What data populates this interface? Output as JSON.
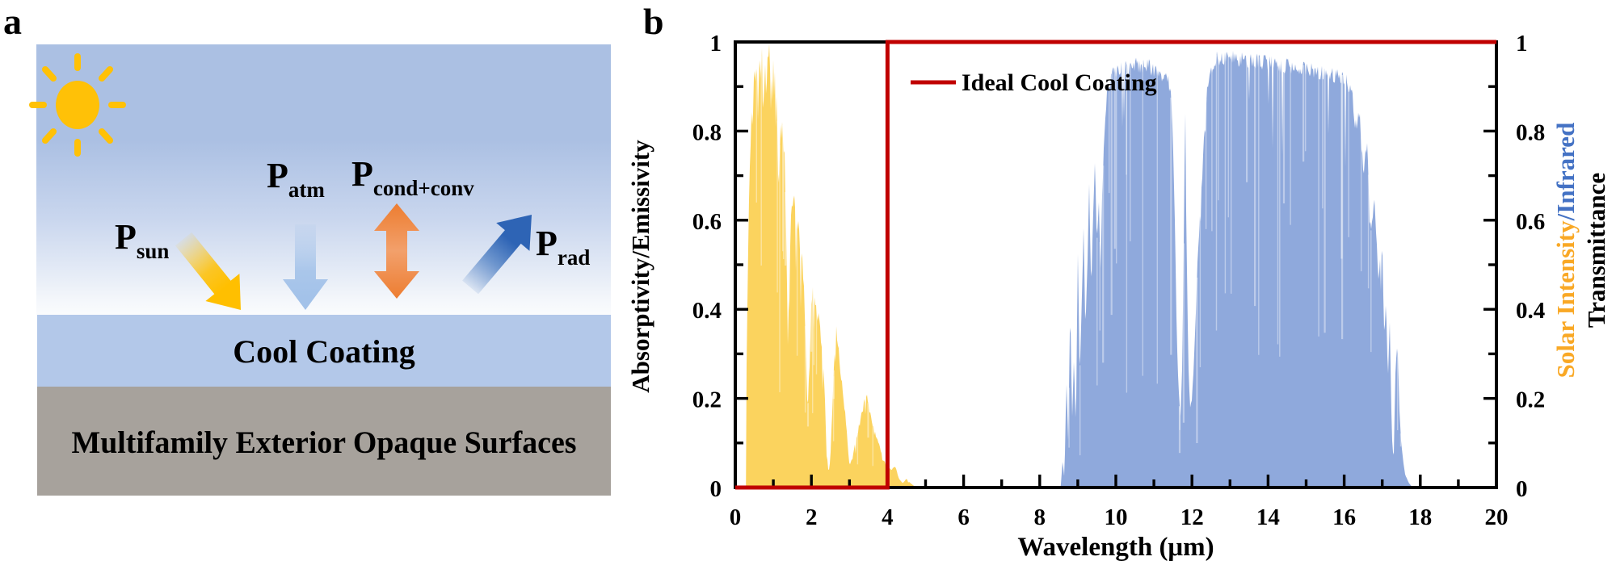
{
  "panel_a": {
    "label": "a",
    "flux_labels": {
      "sun": {
        "main": "P",
        "sub": "sun",
        "color": "#FFBF00"
      },
      "atm": {
        "main": "P",
        "sub": "atm",
        "color": "#5B9BD5"
      },
      "cond_conv": {
        "main": "P",
        "sub": "cond+conv",
        "color": "#ED7D31"
      },
      "rad": {
        "main": "P",
        "sub": "rad",
        "color": "#2E64B5"
      }
    },
    "layers": {
      "coating": {
        "label": "Cool Coating",
        "color": "#B3C8E9"
      },
      "substrate": {
        "label": "Multifamily Exterior Opaque Surfaces",
        "color": "#A7A29C"
      }
    },
    "sky_color": "#ABC0E3",
    "sun_color": "#FFC107"
  },
  "panel_b": {
    "label": "b",
    "left_axis_title": "Absorptivity/Emissivity",
    "right_axis_title": {
      "part1": "Solar Intensity",
      "part2": "/Infrared",
      "part3": "Transmittance",
      "solar_color": "#F9A825",
      "infrared_color": "#4472C4"
    },
    "xlabel": "Wavelength (μm)",
    "legend": {
      "label": "Ideal Cool Coating",
      "color": "#C00000"
    }
  },
  "chart_data": {
    "type": "area",
    "title": "",
    "xlabel": "Wavelength (μm)",
    "ylabel_left": "Absorptivity/Emissivity",
    "ylabel_right": "Solar Intensity/Infrared Transmittance",
    "xlim": [
      0,
      20
    ],
    "ylim": [
      0,
      1
    ],
    "grid": false,
    "legend_position": "top-left-inside",
    "x_major_tick_values": [
      0,
      2,
      4,
      6,
      8,
      10,
      12,
      14,
      16,
      18,
      20
    ],
    "x_tick_labels": [
      "0",
      "2",
      "4",
      "6",
      "8",
      "10",
      "12",
      "14",
      "16",
      "18",
      "20"
    ],
    "x_minor_tick_values": [
      1,
      3,
      5,
      7,
      9,
      11,
      13,
      15,
      17,
      19
    ],
    "y_major_tick_values": [
      0,
      0.2,
      0.4,
      0.6,
      0.8,
      1
    ],
    "y_tick_labels": [
      "0",
      "0.2",
      "0.4",
      "0.6",
      "0.8",
      "1"
    ],
    "y_minor_tick_values": [
      0.1,
      0.3,
      0.5,
      0.7,
      0.9
    ],
    "series": [
      {
        "name": "Ideal Cool Coating",
        "type": "line",
        "color": "#C00000",
        "points": [
          [
            0,
            0
          ],
          [
            4,
            0
          ],
          [
            4,
            1
          ],
          [
            20,
            1
          ]
        ]
      },
      {
        "name": "Solar Intensity",
        "type": "area",
        "color": "#FBD35E",
        "points": [
          [
            0.28,
            0
          ],
          [
            0.3,
            0.32
          ],
          [
            0.33,
            0.5
          ],
          [
            0.36,
            0.65
          ],
          [
            0.4,
            0.8
          ],
          [
            0.45,
            0.88
          ],
          [
            0.5,
            0.93
          ],
          [
            0.55,
            0.95
          ],
          [
            0.6,
            0.96
          ],
          [
            0.65,
            0.96
          ],
          [
            0.7,
            0.98
          ],
          [
            0.72,
            0.9
          ],
          [
            0.76,
            0.95
          ],
          [
            0.8,
            0.93
          ],
          [
            0.85,
            0.96
          ],
          [
            0.9,
            0.99
          ],
          [
            0.93,
            0.86
          ],
          [
            0.96,
            0.91
          ],
          [
            1,
            0.95
          ],
          [
            1.05,
            0.91
          ],
          [
            1.1,
            0.86
          ],
          [
            1.13,
            0.7
          ],
          [
            1.18,
            0.8
          ],
          [
            1.25,
            0.82
          ],
          [
            1.3,
            0.77
          ],
          [
            1.35,
            0.5
          ],
          [
            1.38,
            0.33
          ],
          [
            1.42,
            0.44
          ],
          [
            1.48,
            0.67
          ],
          [
            1.55,
            0.66
          ],
          [
            1.6,
            0.62
          ],
          [
            1.65,
            0.6
          ],
          [
            1.7,
            0.57
          ],
          [
            1.75,
            0.52
          ],
          [
            1.8,
            0.47
          ],
          [
            1.85,
            0.34
          ],
          [
            1.9,
            0.17
          ],
          [
            1.95,
            0.28
          ],
          [
            2,
            0.44
          ],
          [
            2.05,
            0.46
          ],
          [
            2.1,
            0.44
          ],
          [
            2.15,
            0.41
          ],
          [
            2.2,
            0.38
          ],
          [
            2.25,
            0.34
          ],
          [
            2.3,
            0.29
          ],
          [
            2.35,
            0.21
          ],
          [
            2.4,
            0.09
          ],
          [
            2.45,
            0.03
          ],
          [
            2.5,
            0.07
          ],
          [
            2.55,
            0.18
          ],
          [
            2.6,
            0.3
          ],
          [
            2.65,
            0.37
          ],
          [
            2.7,
            0.33
          ],
          [
            2.75,
            0.28
          ],
          [
            2.8,
            0.24
          ],
          [
            2.85,
            0.2
          ],
          [
            2.9,
            0.16
          ],
          [
            2.95,
            0.1
          ],
          [
            3,
            0.05
          ],
          [
            3.1,
            0.08
          ],
          [
            3.2,
            0.12
          ],
          [
            3.3,
            0.16
          ],
          [
            3.4,
            0.2
          ],
          [
            3.45,
            0.22
          ],
          [
            3.5,
            0.19
          ],
          [
            3.6,
            0.15
          ],
          [
            3.7,
            0.12
          ],
          [
            3.8,
            0.09
          ],
          [
            3.9,
            0.06
          ],
          [
            4,
            0.05
          ],
          [
            4.1,
            0.04
          ],
          [
            4.2,
            0.05
          ],
          [
            4.3,
            0.02
          ],
          [
            4.4,
            0.01
          ],
          [
            4.5,
            0.02
          ],
          [
            4.6,
            0.01
          ],
          [
            4.75,
            0
          ]
        ]
      },
      {
        "name": "Infrared Transmittance",
        "type": "area",
        "color": "#8FA9DC",
        "points": [
          [
            8.55,
            0
          ],
          [
            8.6,
            0.06
          ],
          [
            8.65,
            0.02
          ],
          [
            8.7,
            0.25
          ],
          [
            8.75,
            0.1
          ],
          [
            8.8,
            0.42
          ],
          [
            8.85,
            0.15
          ],
          [
            8.9,
            0.3
          ],
          [
            8.95,
            0.12
          ],
          [
            9,
            0.55
          ],
          [
            9.05,
            0.25
          ],
          [
            9.1,
            0.4
          ],
          [
            9.15,
            0.6
          ],
          [
            9.2,
            0.35
          ],
          [
            9.25,
            0.5
          ],
          [
            9.3,
            0.7
          ],
          [
            9.35,
            0.45
          ],
          [
            9.4,
            0.6
          ],
          [
            9.45,
            0.75
          ],
          [
            9.5,
            0.55
          ],
          [
            9.55,
            0.65
          ],
          [
            9.6,
            0.5
          ],
          [
            9.65,
            0.7
          ],
          [
            9.7,
            0.8
          ],
          [
            9.75,
            0.88
          ],
          [
            9.8,
            0.92
          ],
          [
            9.9,
            0.94
          ],
          [
            10,
            0.95
          ],
          [
            10.2,
            0.955
          ],
          [
            10.4,
            0.96
          ],
          [
            10.6,
            0.96
          ],
          [
            10.8,
            0.96
          ],
          [
            11,
            0.955
          ],
          [
            11.1,
            0.95
          ],
          [
            11.2,
            0.945
          ],
          [
            11.3,
            0.94
          ],
          [
            11.4,
            0.92
          ],
          [
            11.45,
            0.88
          ],
          [
            11.5,
            0.8
          ],
          [
            11.55,
            0.6
          ],
          [
            11.6,
            0.35
          ],
          [
            11.65,
            0.22
          ],
          [
            11.7,
            0.16
          ],
          [
            11.75,
            0.3
          ],
          [
            11.8,
            0.7
          ],
          [
            11.83,
            0.86
          ],
          [
            11.86,
            0.55
          ],
          [
            11.9,
            0.3
          ],
          [
            11.95,
            0.18
          ],
          [
            12,
            0.2
          ],
          [
            12.05,
            0.28
          ],
          [
            12.1,
            0.4
          ],
          [
            12.15,
            0.52
          ],
          [
            12.2,
            0.6
          ],
          [
            12.25,
            0.68
          ],
          [
            12.3,
            0.76
          ],
          [
            12.35,
            0.85
          ],
          [
            12.4,
            0.92
          ],
          [
            12.5,
            0.96
          ],
          [
            12.6,
            0.975
          ],
          [
            12.8,
            0.98
          ],
          [
            13,
            0.98
          ],
          [
            13.2,
            0.978
          ],
          [
            13.4,
            0.975
          ],
          [
            13.6,
            0.972
          ],
          [
            13.8,
            0.97
          ],
          [
            14,
            0.968
          ],
          [
            14.2,
            0.965
          ],
          [
            14.4,
            0.962
          ],
          [
            14.6,
            0.958
          ],
          [
            14.8,
            0.955
          ],
          [
            15,
            0.952
          ],
          [
            15.2,
            0.95
          ],
          [
            15.4,
            0.945
          ],
          [
            15.6,
            0.94
          ],
          [
            15.8,
            0.935
          ],
          [
            16,
            0.93
          ],
          [
            16.1,
            0.92
          ],
          [
            16.2,
            0.9
          ],
          [
            16.3,
            0.82
          ],
          [
            16.4,
            0.86
          ],
          [
            16.5,
            0.72
          ],
          [
            16.6,
            0.78
          ],
          [
            16.7,
            0.58
          ],
          [
            16.8,
            0.65
          ],
          [
            16.9,
            0.48
          ],
          [
            17,
            0.55
          ],
          [
            17.05,
            0.35
          ],
          [
            17.1,
            0.42
          ],
          [
            17.15,
            0.25
          ],
          [
            17.2,
            0.38
          ],
          [
            17.25,
            0.12
          ],
          [
            17.3,
            0.06
          ],
          [
            17.35,
            0.28
          ],
          [
            17.4,
            0.33
          ],
          [
            17.45,
            0.18
          ],
          [
            17.5,
            0.1
          ],
          [
            17.55,
            0.06
          ],
          [
            17.6,
            0.03
          ],
          [
            17.7,
            0.01
          ],
          [
            17.8,
            0
          ]
        ]
      }
    ]
  }
}
